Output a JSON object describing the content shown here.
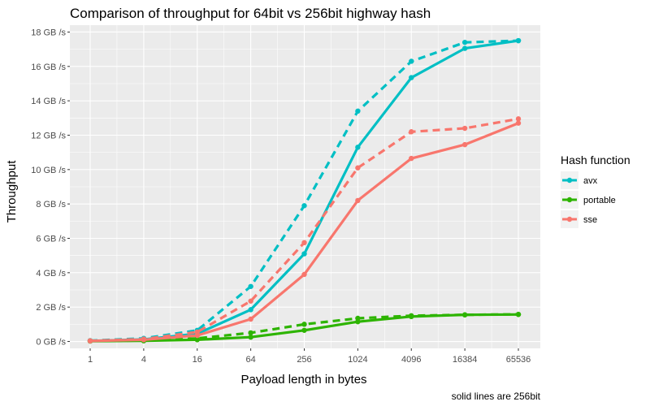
{
  "chart_data": {
    "type": "line",
    "title": "Comparison of throughput for 64bit vs 256bit highway hash",
    "xlabel": "Payload length in bytes",
    "ylabel": "Throughput",
    "caption": "solid lines are 256bit",
    "x_scale": "log2",
    "x_ticks": [
      "1",
      "4",
      "16",
      "64",
      "256",
      "1024",
      "4096",
      "16384",
      "65536"
    ],
    "x": [
      1,
      4,
      16,
      64,
      256,
      1024,
      4096,
      16384,
      65536
    ],
    "y_ticks": [
      "0 GB /s",
      "2 GB /s",
      "4 GB /s",
      "6 GB /s",
      "8 GB /s",
      "10 GB /s",
      "12 GB /s",
      "14 GB /s",
      "16 GB /s",
      "18 GB /s"
    ],
    "ylim": [
      -0.4,
      18.4
    ],
    "grid": true,
    "legend": {
      "title": "Hash function",
      "placement": "right",
      "entries": [
        {
          "label": "avx",
          "color": "#00BFC4"
        },
        {
          "label": "portable",
          "color": "#2DB400"
        },
        {
          "label": "sse",
          "color": "#F8766D"
        }
      ]
    },
    "series": [
      {
        "function": "avx",
        "width": "256bit",
        "style": "solid",
        "color": "#00BFC4",
        "values": [
          0.03,
          0.12,
          0.45,
          1.85,
          5.1,
          11.3,
          15.35,
          17.05,
          17.5
        ]
      },
      {
        "function": "avx",
        "width": "64bit",
        "style": "dashed",
        "color": "#00BFC4",
        "values": [
          0.05,
          0.18,
          0.65,
          3.2,
          7.9,
          13.4,
          16.3,
          17.4,
          17.5
        ]
      },
      {
        "function": "portable",
        "width": "256bit",
        "style": "solid",
        "color": "#2DB400",
        "values": [
          0.02,
          0.04,
          0.1,
          0.25,
          0.65,
          1.15,
          1.45,
          1.55,
          1.57
        ]
      },
      {
        "function": "portable",
        "width": "64bit",
        "style": "dashed",
        "color": "#2DB400",
        "values": [
          0.03,
          0.06,
          0.18,
          0.5,
          1.0,
          1.35,
          1.5,
          1.55,
          1.58
        ]
      },
      {
        "function": "sse",
        "width": "256bit",
        "style": "solid",
        "color": "#F8766D",
        "values": [
          0.03,
          0.1,
          0.35,
          1.3,
          3.9,
          8.2,
          10.65,
          11.45,
          12.7
        ]
      },
      {
        "function": "sse",
        "width": "64bit",
        "style": "dashed",
        "color": "#F8766D",
        "values": [
          0.04,
          0.14,
          0.55,
          2.35,
          5.75,
          10.1,
          12.2,
          12.4,
          12.95
        ]
      }
    ]
  }
}
